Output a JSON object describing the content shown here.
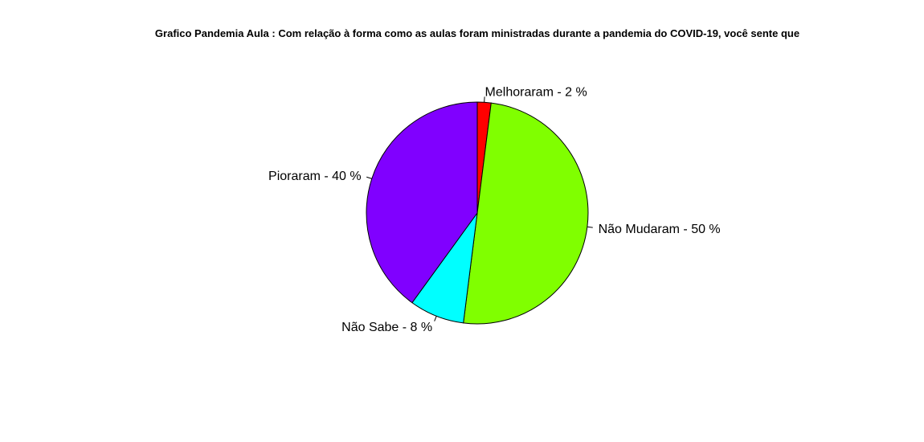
{
  "chart_data": {
    "type": "pie",
    "title": "Grafico Pandemia Aula : Com relação à forma como as aulas foram ministradas durante a pandemia do COVID-19, você sente que",
    "slices": [
      {
        "label": "Melhoraram - 2 %",
        "category": "Melhoraram",
        "value": 2,
        "color": "#FF0000"
      },
      {
        "label": "Não Mudaram - 50 %",
        "category": "Não Mudaram",
        "value": 50,
        "color": "#80FF00"
      },
      {
        "label": "Não Sabe - 8 %",
        "category": "Não Sabe",
        "value": 8,
        "color": "#00FFFF"
      },
      {
        "label": "Pioraram - 40 %",
        "category": "Pioraram",
        "value": 40,
        "color": "#8000FF"
      }
    ],
    "start_angle": "top",
    "direction": "clockwise",
    "legend": "none"
  }
}
